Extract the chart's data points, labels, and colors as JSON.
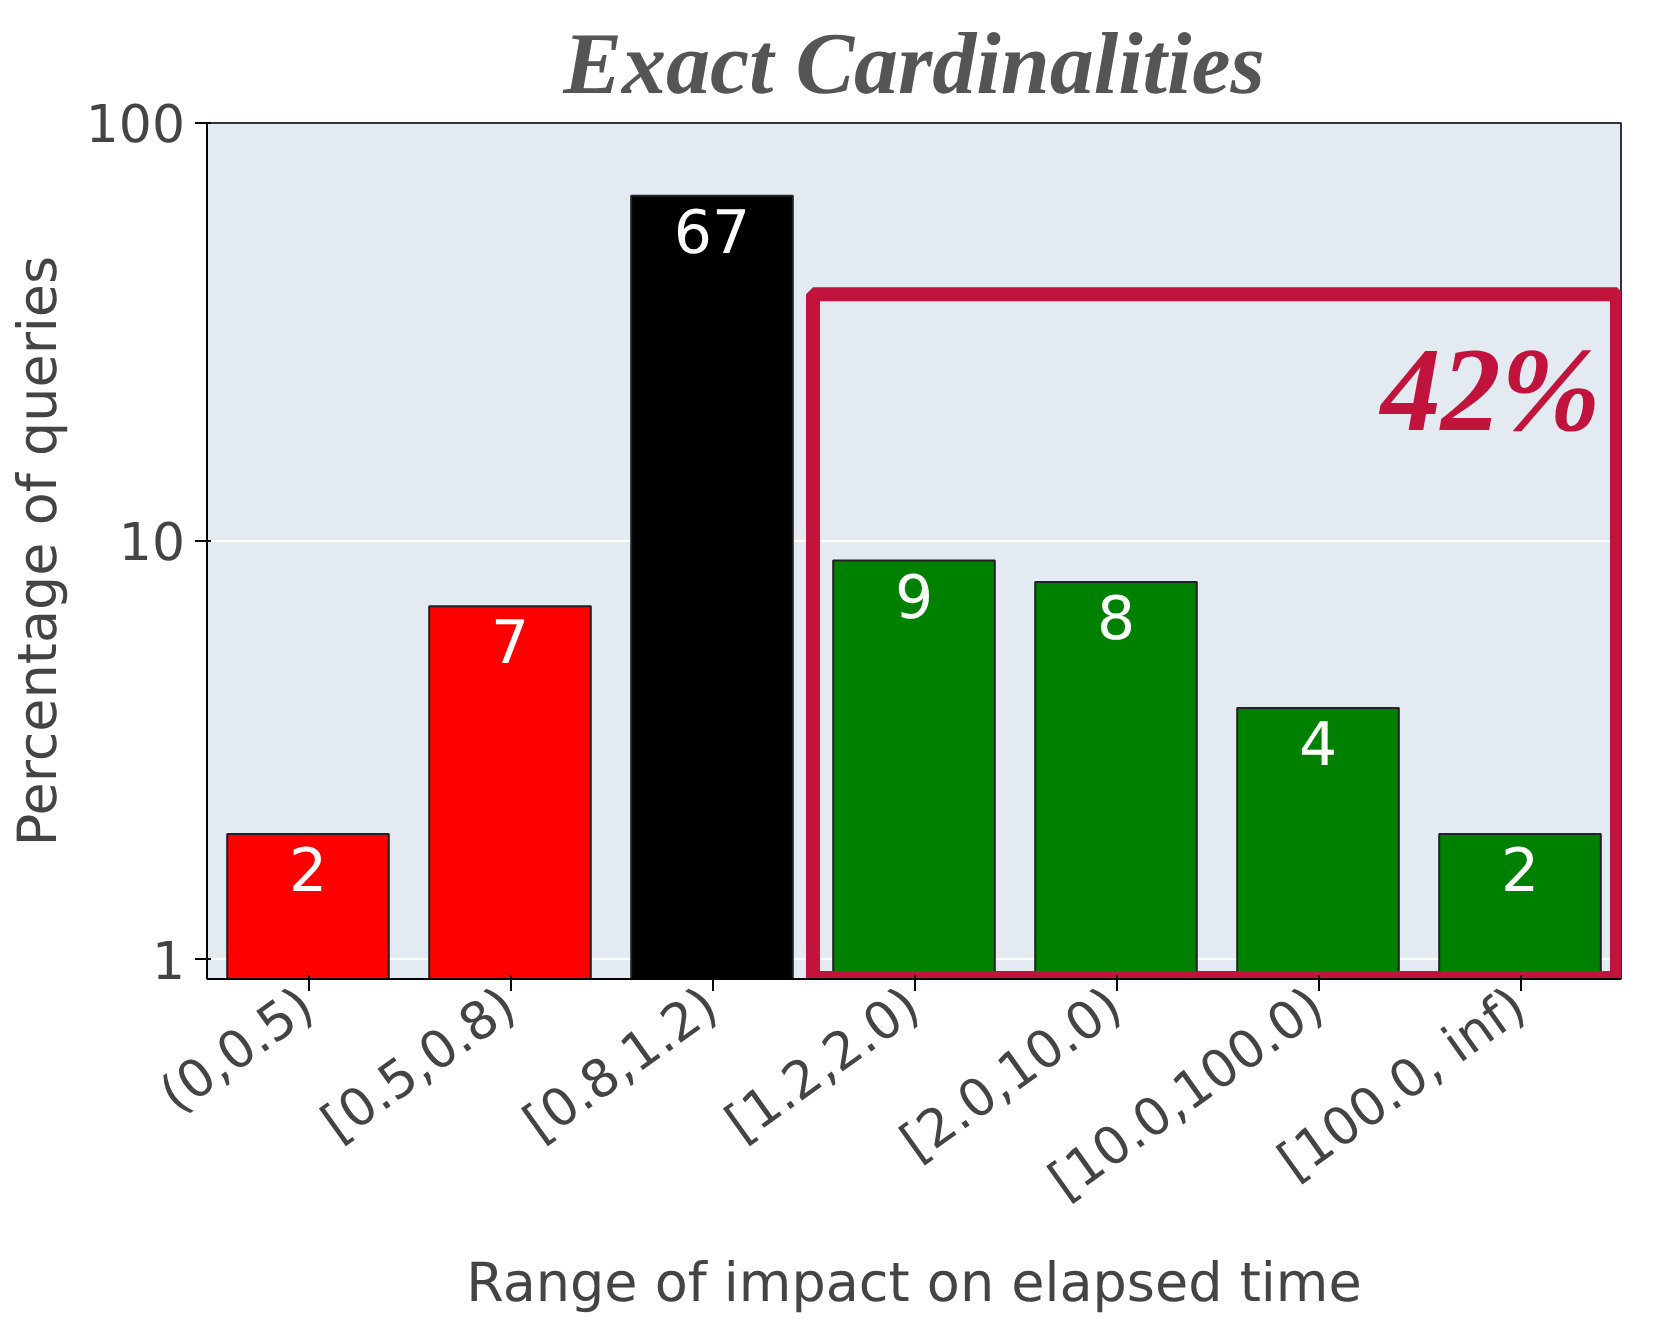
{
  "chart_data": {
    "type": "bar",
    "title": "Exact Cardinalities",
    "xlabel": "Range of impact on elapsed time",
    "ylabel": "Percentage of queries",
    "categories": [
      "(0,0.5)",
      "[0.5,0.8)",
      "[0.8,1.2)",
      "[1.2,2.0)",
      "[2.0,10.0)",
      "[10.0,100.0)",
      "[100.0, inf)"
    ],
    "values": [
      2,
      7,
      67,
      9,
      8,
      4,
      2
    ],
    "colors": [
      "#ff0000",
      "#ff0000",
      "#000000",
      "#008000",
      "#008000",
      "#008000",
      "#008000"
    ],
    "log": true,
    "ylim": [
      0.9,
      100
    ],
    "yticks": [
      1,
      10,
      100
    ],
    "grid": "y",
    "data_labels": true,
    "annotations": [
      "42%"
    ]
  }
}
